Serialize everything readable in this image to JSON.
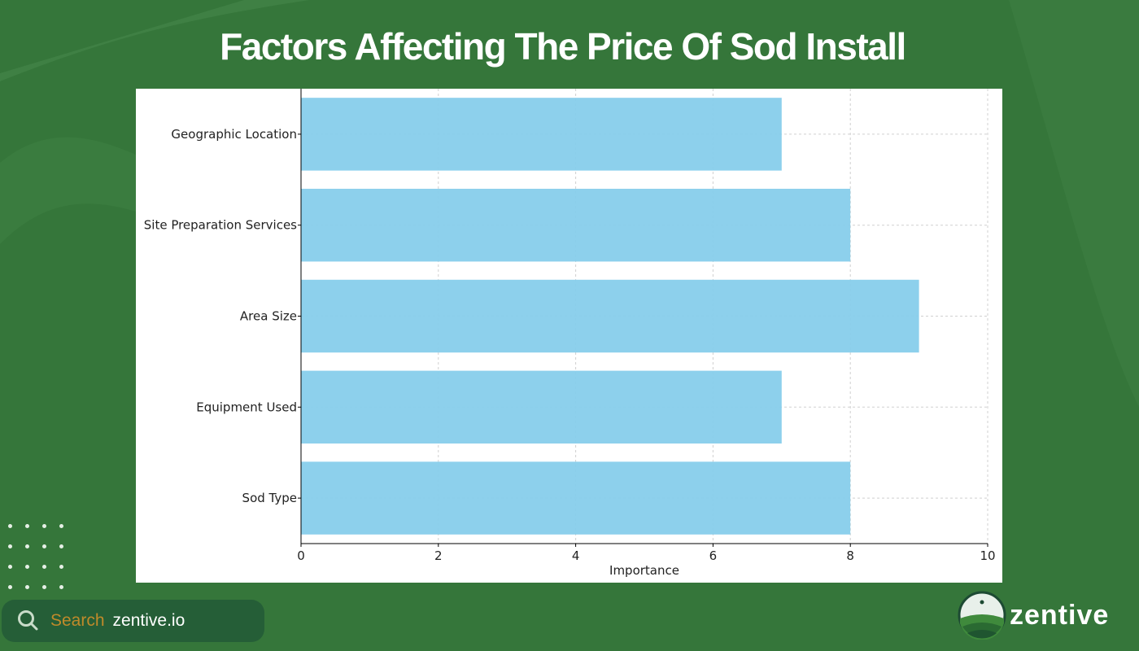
{
  "title": "Factors Affecting The Price Of Sod Install",
  "chart_data": {
    "type": "bar",
    "orientation": "horizontal",
    "categories": [
      "Geographic Location",
      "Site Preparation Services",
      "Area Size",
      "Equipment Used",
      "Sod Type"
    ],
    "values": [
      7,
      8,
      9,
      7,
      8
    ],
    "xlabel": "Importance",
    "ylabel": "",
    "xlim": [
      0,
      10
    ],
    "xticks": [
      0,
      2,
      4,
      6,
      8,
      10
    ],
    "grid": true,
    "bar_color": "#87ceeb"
  },
  "footer": {
    "search_label": "Search",
    "search_site": "zentive.io",
    "brand": "zentive",
    "search_icon": "magnifier-icon"
  },
  "colors": {
    "background": "#35763a",
    "search_bg": "#255e37",
    "search_label": "#c08a2a"
  }
}
